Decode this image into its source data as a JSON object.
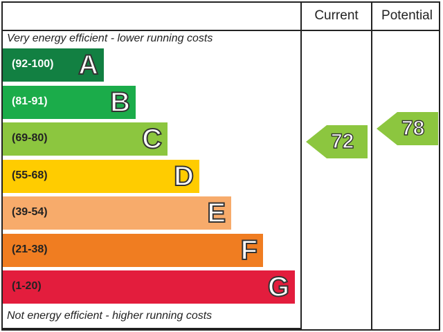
{
  "header": {
    "current_label": "Current",
    "potential_label": "Potential"
  },
  "notes": {
    "top": "Very energy efficient - lower running costs",
    "bottom": "Not energy efficient - higher running costs"
  },
  "chart_data": {
    "type": "bar",
    "bands": [
      {
        "letter": "A",
        "range": "(92-100)",
        "color": "#128042"
      },
      {
        "letter": "B",
        "range": "(81-91)",
        "color": "#1bac4a"
      },
      {
        "letter": "C",
        "range": "(69-80)",
        "color": "#8cc63f"
      },
      {
        "letter": "D",
        "range": "(55-68)",
        "color": "#ffcc00"
      },
      {
        "letter": "E",
        "range": "(39-54)",
        "color": "#f7ab6b"
      },
      {
        "letter": "F",
        "range": "(21-38)",
        "color": "#f07d21"
      },
      {
        "letter": "G",
        "range": "(1-20)",
        "color": "#e31d3d"
      }
    ],
    "current": {
      "value": 72,
      "band": "C",
      "color": "#8cc63f"
    },
    "potential": {
      "value": 78,
      "band": "C",
      "color": "#8cc63f"
    }
  }
}
